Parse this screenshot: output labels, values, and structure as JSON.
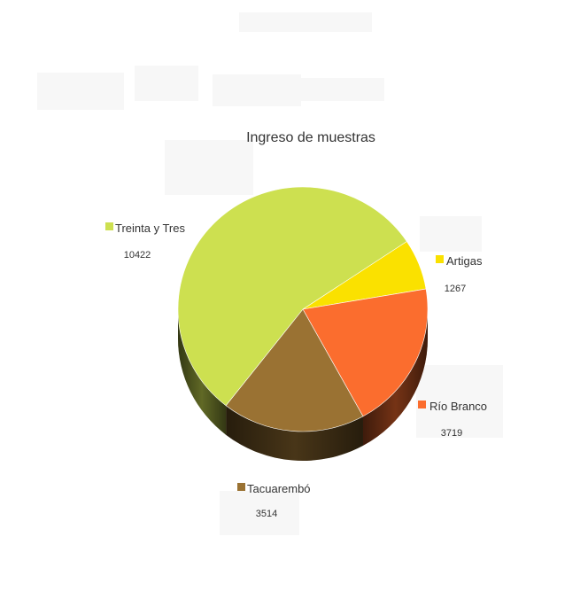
{
  "chart_data": {
    "type": "pie",
    "title": "Ingreso de muestras",
    "legend": "around-pie",
    "slices": [
      {
        "label": "Treinta y Tres",
        "value": 10422,
        "color": "#cde050"
      },
      {
        "label": "Artigas",
        "value": 1267,
        "color": "#fae100"
      },
      {
        "label": "Río Branco",
        "value": 3719,
        "color": "#fb6d2e"
      },
      {
        "label": "Tacuarembó",
        "value": 3514,
        "color": "#9a7233"
      }
    ]
  }
}
